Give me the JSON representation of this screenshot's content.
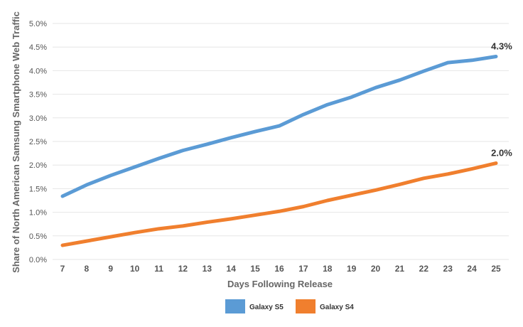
{
  "chart_data": {
    "type": "line",
    "title": "",
    "xlabel": "Days Following Release",
    "ylabel": "Share of North American Samsung Smartphone Web Traffic",
    "x": [
      7,
      8,
      9,
      10,
      11,
      12,
      13,
      14,
      15,
      16,
      17,
      18,
      19,
      20,
      21,
      22,
      23,
      24,
      25
    ],
    "ylim": [
      0,
      5.0
    ],
    "yticks": [
      "0.0%",
      "0.5%",
      "1.0%",
      "1.5%",
      "2.0%",
      "2.5%",
      "3.0%",
      "3.5%",
      "4.0%",
      "4.5%",
      "5.0%"
    ],
    "grid": true,
    "legend_position": "bottom",
    "series": [
      {
        "name": "Galaxy S5",
        "color": "#5b9bd5",
        "values": [
          1.34,
          1.58,
          1.78,
          1.96,
          2.14,
          2.31,
          2.44,
          2.58,
          2.71,
          2.83,
          3.07,
          3.28,
          3.44,
          3.64,
          3.8,
          3.99,
          4.17,
          4.22,
          4.3
        ],
        "end_label": "4.3%"
      },
      {
        "name": "Galaxy S4",
        "color": "#f07f2e",
        "values": [
          0.3,
          0.39,
          0.48,
          0.57,
          0.65,
          0.71,
          0.79,
          0.86,
          0.94,
          1.02,
          1.12,
          1.25,
          1.36,
          1.47,
          1.59,
          1.72,
          1.81,
          1.92,
          2.04
        ],
        "end_label": "2.0%"
      }
    ]
  }
}
